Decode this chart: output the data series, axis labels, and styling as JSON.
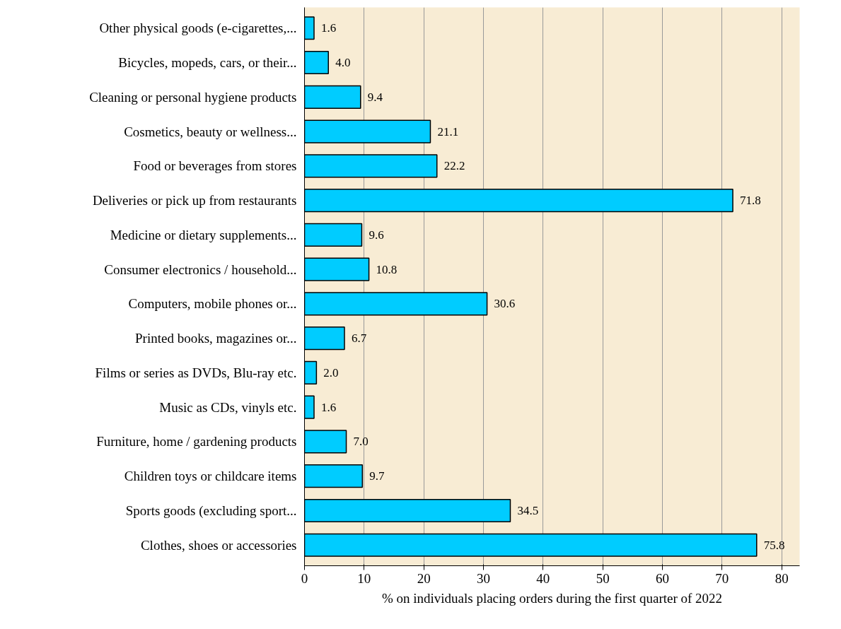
{
  "chart_data": {
    "type": "bar",
    "orientation": "horizontal",
    "xlabel": "% on individuals placing orders during the first quarter of 2022",
    "categories": [
      "Other physical goods (e-cigarettes,...",
      "Bicycles, mopeds, cars, or their...",
      "Cleaning or personal hygiene products",
      "Cosmetics, beauty or wellness...",
      "Food or beverages from stores",
      "Deliveries or pick up from restaurants",
      "Medicine or dietary supplements...",
      "Consumer electronics / household...",
      "Computers, mobile phones or...",
      "Printed books, magazines or...",
      "Films or series as DVDs, Blu-ray etc.",
      "Music as CDs, vinyls etc.",
      "Furniture, home / gardening products",
      "Children toys or childcare items",
      "Sports goods (excluding sport...",
      "Clothes, shoes or accessories"
    ],
    "values": [
      1.6,
      4.0,
      9.4,
      21.1,
      22.2,
      71.8,
      9.6,
      10.8,
      30.6,
      6.7,
      2.0,
      1.6,
      7.0,
      9.7,
      34.5,
      75.8
    ],
    "value_labels": [
      "1.6",
      "4.0",
      "9.4",
      "21.1",
      "22.2",
      "71.8",
      "9.6",
      "10.8",
      "30.6",
      "6.7",
      "2.0",
      "1.6",
      "7.0",
      "9.7",
      "34.5",
      "75.8"
    ],
    "color": "#00ccff",
    "xlim": [
      0,
      83
    ],
    "xticks": [
      0,
      10,
      20,
      30,
      40,
      50,
      60,
      70,
      80
    ],
    "grid": "x"
  }
}
